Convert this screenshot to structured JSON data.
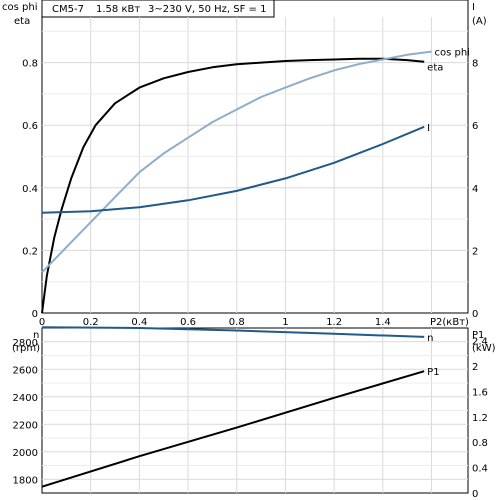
{
  "header": {
    "model": "CM5-7",
    "power": "1.58 кВт",
    "supply": "3~230 V, 50 Hz, SF = 1"
  },
  "chart_data": [
    {
      "type": "line",
      "panel": "efficiency",
      "left_axis": {
        "label_top": "cos phi",
        "label_bottom": "eta",
        "range": [
          0,
          1
        ],
        "ticks": [
          0,
          0.2,
          0.4,
          0.6,
          0.8
        ]
      },
      "right_axis": {
        "label_top": "I",
        "label_bottom": "(A)",
        "range": [
          0,
          10
        ],
        "ticks": [
          0,
          2,
          4,
          6,
          8
        ]
      },
      "x_axis": {
        "label": "P2(кВт)",
        "range": [
          0,
          1.75
        ],
        "ticks": [
          0,
          0.2,
          0.4,
          0.6,
          0.8,
          1,
          1.2,
          1.4
        ]
      },
      "grid": true,
      "series": [
        {
          "name": "eta",
          "axis": "left",
          "color": "#000000",
          "points": [
            [
              0,
              0
            ],
            [
              0.02,
              0.12
            ],
            [
              0.05,
              0.24
            ],
            [
              0.08,
              0.33
            ],
            [
              0.12,
              0.43
            ],
            [
              0.17,
              0.53
            ],
            [
              0.22,
              0.6
            ],
            [
              0.3,
              0.67
            ],
            [
              0.4,
              0.72
            ],
            [
              0.5,
              0.75
            ],
            [
              0.6,
              0.77
            ],
            [
              0.7,
              0.785
            ],
            [
              0.8,
              0.795
            ],
            [
              0.9,
              0.8
            ],
            [
              1.0,
              0.805
            ],
            [
              1.1,
              0.808
            ],
            [
              1.2,
              0.81
            ],
            [
              1.3,
              0.812
            ],
            [
              1.4,
              0.812
            ],
            [
              1.5,
              0.808
            ],
            [
              1.57,
              0.803
            ]
          ]
        },
        {
          "name": "cos phi",
          "axis": "left",
          "color": "#8fadc9",
          "points": [
            [
              0,
              0.13
            ],
            [
              0.05,
              0.17
            ],
            [
              0.1,
              0.21
            ],
            [
              0.2,
              0.29
            ],
            [
              0.3,
              0.37
            ],
            [
              0.4,
              0.45
            ],
            [
              0.5,
              0.51
            ],
            [
              0.6,
              0.56
            ],
            [
              0.7,
              0.61
            ],
            [
              0.8,
              0.65
            ],
            [
              0.9,
              0.69
            ],
            [
              1.0,
              0.72
            ],
            [
              1.1,
              0.75
            ],
            [
              1.2,
              0.775
            ],
            [
              1.3,
              0.795
            ],
            [
              1.4,
              0.81
            ],
            [
              1.5,
              0.825
            ],
            [
              1.6,
              0.835
            ]
          ]
        },
        {
          "name": "I",
          "axis": "right",
          "color": "#1f5a8a",
          "points": [
            [
              0,
              3.2
            ],
            [
              0.2,
              3.25
            ],
            [
              0.4,
              3.38
            ],
            [
              0.6,
              3.6
            ],
            [
              0.8,
              3.9
            ],
            [
              1.0,
              4.3
            ],
            [
              1.2,
              4.8
            ],
            [
              1.4,
              5.4
            ],
            [
              1.57,
              5.95
            ]
          ]
        }
      ]
    },
    {
      "type": "line",
      "panel": "speed-power",
      "left_axis": {
        "label_top": "n",
        "label_bottom": "(rpm)",
        "range": [
          1700,
          2900
        ],
        "ticks": [
          1800,
          2000,
          2200,
          2400,
          2600,
          2800
        ]
      },
      "right_axis": {
        "label_top": "P1",
        "label_bottom": "(kW)",
        "range": [
          0,
          2.6
        ],
        "ticks": [
          0,
          0.4,
          0.8,
          1.2,
          1.6,
          2.0,
          2.4
        ]
      },
      "x_axis": {
        "range": [
          0,
          1.75
        ]
      },
      "grid": true,
      "series": [
        {
          "name": "n",
          "axis": "left",
          "color": "#1f5a8a",
          "points": [
            [
              0,
              2905
            ],
            [
              0.4,
              2900
            ],
            [
              0.8,
              2882
            ],
            [
              1.2,
              2858
            ],
            [
              1.57,
              2835
            ]
          ]
        },
        {
          "name": "P1",
          "axis": "right",
          "color": "#000000",
          "points": [
            [
              0,
              0.1
            ],
            [
              0.4,
              0.58
            ],
            [
              0.8,
              1.03
            ],
            [
              1.2,
              1.5
            ],
            [
              1.57,
              1.92
            ]
          ]
        }
      ]
    }
  ]
}
